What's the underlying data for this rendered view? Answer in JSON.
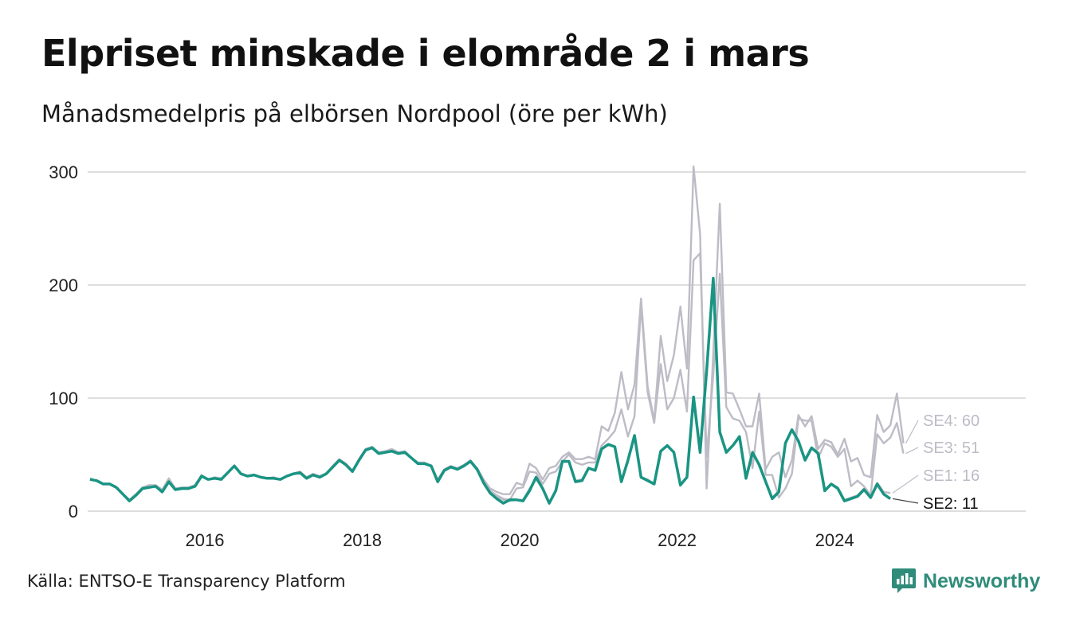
{
  "header": {
    "title": "Elpriset minskade i elområde 2 i mars",
    "subtitle": "Månadsmedelpris på elbörsen Nordpool (öre per kWh)"
  },
  "footer": {
    "source": "Källa: ENTSO-E Transparency Platform",
    "logo_text": "Newsworthy"
  },
  "colors": {
    "highlight": "#1a9483",
    "other": "#bdbcc6",
    "grid": "#dedede",
    "logo": "#2f8c7a"
  },
  "chart_data": {
    "type": "line",
    "x_start": "2015-01",
    "x_end": "2025-03",
    "x_ticks": [
      "2016",
      "2018",
      "2020",
      "2022",
      "2024"
    ],
    "y_ticks": [
      0,
      100,
      200,
      300
    ],
    "ylim": [
      0,
      300
    ],
    "grid": true,
    "highlight_series": "SE2",
    "series": [
      {
        "name": "SE4",
        "end_label": "SE4: 60",
        "values": [
          29,
          27,
          24,
          24,
          21,
          15,
          10,
          15,
          21,
          23,
          23,
          19,
          29,
          20,
          21,
          21,
          23,
          32,
          28,
          30,
          29,
          34,
          40,
          33,
          31,
          32,
          30,
          29,
          30,
          28,
          31,
          33,
          35,
          30,
          33,
          31,
          33,
          40,
          46,
          42,
          36,
          46,
          55,
          57,
          52,
          53,
          55,
          52,
          53,
          47,
          43,
          43,
          40,
          28,
          37,
          40,
          38,
          41,
          45,
          38,
          28,
          20,
          17,
          15,
          15,
          25,
          23,
          42,
          38,
          28,
          38,
          40,
          48,
          52,
          46,
          46,
          48,
          46,
          75,
          71,
          87,
          123,
          90,
          112,
          188,
          110,
          80,
          155,
          115,
          138,
          181,
          126,
          305,
          245,
          20,
          140,
          272,
          105,
          104,
          90,
          75,
          75,
          104,
          37,
          48,
          52,
          30,
          45,
          85,
          75,
          84,
          55,
          63,
          61,
          50,
          64,
          44,
          47,
          32,
          30,
          85,
          70,
          76,
          104,
          60
        ]
      },
      {
        "name": "SE3",
        "end_label": "SE3: 51",
        "values": [
          28,
          27,
          24,
          24,
          21,
          15,
          10,
          15,
          20,
          22,
          22,
          18,
          28,
          19,
          20,
          20,
          22,
          31,
          28,
          29,
          28,
          34,
          40,
          33,
          31,
          32,
          30,
          29,
          29,
          28,
          31,
          33,
          34,
          30,
          32,
          31,
          33,
          39,
          45,
          41,
          36,
          45,
          54,
          56,
          52,
          53,
          54,
          51,
          52,
          47,
          42,
          42,
          40,
          27,
          36,
          39,
          37,
          40,
          44,
          37,
          26,
          18,
          14,
          11,
          10,
          20,
          21,
          35,
          34,
          24,
          33,
          35,
          44,
          50,
          43,
          41,
          43,
          43,
          58,
          64,
          71,
          90,
          66,
          84,
          182,
          105,
          78,
          130,
          90,
          100,
          125,
          88,
          222,
          228,
          48,
          120,
          210,
          92,
          82,
          80,
          70,
          38,
          88,
          32,
          32,
          12,
          20,
          33,
          82,
          80,
          80,
          47,
          60,
          57,
          48,
          55,
          22,
          27,
          22,
          14,
          68,
          60,
          65,
          78,
          51
        ]
      },
      {
        "name": "SE1",
        "end_label": "SE1: 16",
        "values": [
          28,
          27,
          24,
          24,
          21,
          15,
          10,
          15,
          20,
          21,
          22,
          17,
          26,
          19,
          20,
          20,
          22,
          31,
          28,
          29,
          28,
          34,
          40,
          33,
          31,
          32,
          30,
          29,
          29,
          28,
          31,
          33,
          34,
          30,
          32,
          30,
          33,
          39,
          45,
          41,
          35,
          45,
          54,
          56,
          51,
          52,
          53,
          51,
          52,
          47,
          42,
          42,
          40,
          26,
          36,
          39,
          37,
          40,
          44,
          37,
          25,
          17,
          13,
          10,
          9,
          10,
          10,
          20,
          28,
          20,
          8,
          18,
          44,
          44,
          27,
          28,
          38,
          36,
          55,
          59,
          57,
          27,
          45,
          67,
          30,
          28,
          24,
          53,
          58,
          52,
          23,
          30,
          101,
          52,
          124,
          205,
          70,
          52,
          58,
          66,
          30,
          52,
          42,
          26,
          12,
          18,
          60,
          72,
          62,
          46,
          56,
          52,
          19,
          24,
          21,
          10,
          12,
          14,
          20,
          13,
          25,
          17,
          16
        ]
      },
      {
        "name": "SE2",
        "end_label": "SE2: 11",
        "values": [
          28,
          27,
          24,
          24,
          21,
          15,
          9,
          14,
          20,
          21,
          22,
          17,
          26,
          19,
          20,
          20,
          22,
          31,
          28,
          29,
          28,
          34,
          40,
          33,
          31,
          32,
          30,
          29,
          29,
          28,
          31,
          33,
          34,
          29,
          32,
          30,
          33,
          39,
          45,
          41,
          35,
          45,
          54,
          56,
          51,
          52,
          53,
          51,
          52,
          47,
          42,
          42,
          40,
          26,
          36,
          39,
          37,
          40,
          44,
          37,
          25,
          16,
          11,
          7,
          10,
          10,
          9,
          18,
          30,
          20,
          7,
          18,
          44,
          44,
          26,
          27,
          38,
          36,
          55,
          59,
          57,
          26,
          45,
          67,
          30,
          27,
          24,
          53,
          58,
          52,
          23,
          30,
          101,
          52,
          124,
          206,
          70,
          52,
          58,
          66,
          29,
          52,
          41,
          26,
          11,
          17,
          60,
          72,
          62,
          45,
          56,
          51,
          18,
          24,
          20,
          9,
          11,
          13,
          19,
          12,
          24,
          15,
          11
        ]
      }
    ]
  }
}
